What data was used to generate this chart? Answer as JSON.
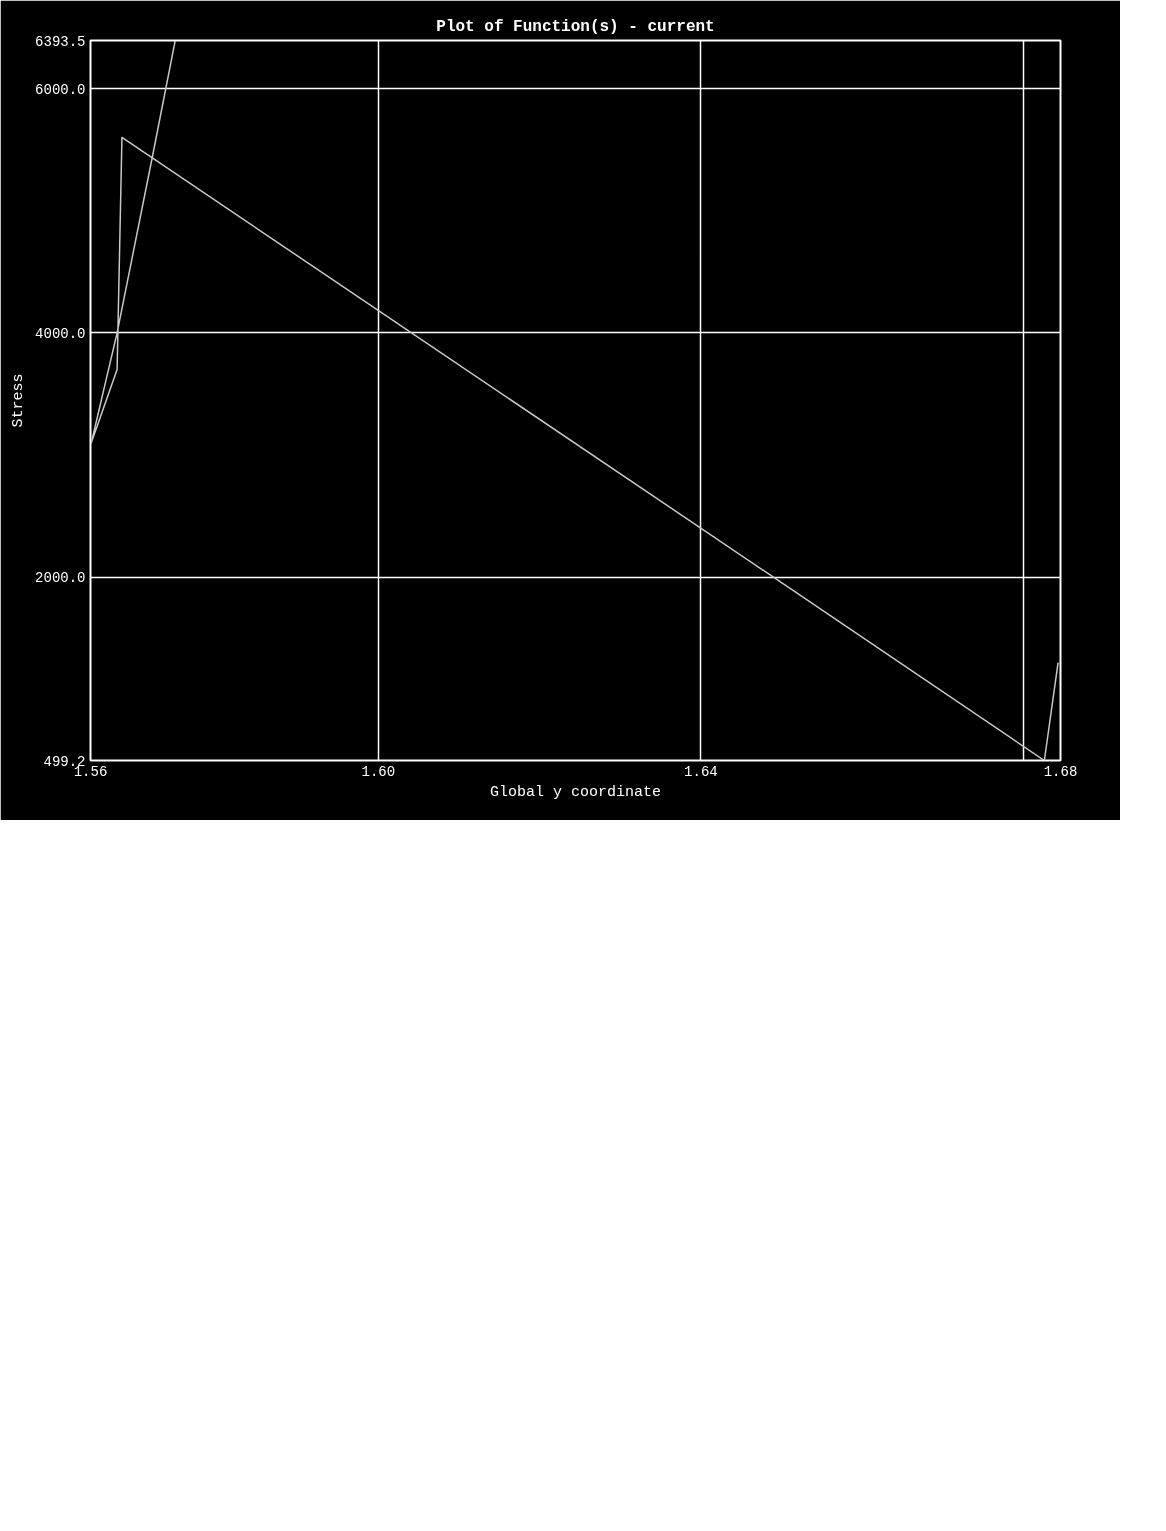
{
  "chart_data": {
    "type": "line",
    "title": "Plot of Function(s) - current",
    "xlabel": "Global y coordinate",
    "ylabel": "Stress",
    "x": [
      1.5748,
      1.572,
      1.5676,
      1.5644,
      1.5676,
      1.5682,
      1.649,
      1.6826,
      1.6843
    ],
    "series": [
      {
        "color": "#c8c8c8",
        "values": [
          6390,
          5450,
          4000,
          3100,
          3700,
          5600,
          2000,
          499.2,
          1300
        ]
      }
    ],
    "xlim": [
      1.5643,
      1.6846
    ],
    "xticks": [
      {
        "value": 1.5643,
        "label": "1.56"
      },
      {
        "value": 1.6,
        "label": "1.60"
      },
      1.64,
      {
        "value": 1.68,
        "label": null
      },
      {
        "value": 1.6846,
        "label": "1.68"
      }
    ],
    "ylim": [
      499.2,
      6393.5
    ],
    "yticks": [
      499.2,
      {
        "value": 2000,
        "label": "2000.0"
      },
      {
        "value": 4000,
        "label": "4000.0"
      },
      {
        "value": 6000,
        "label": "6000.0"
      },
      6393.5
    ],
    "grid": true
  }
}
